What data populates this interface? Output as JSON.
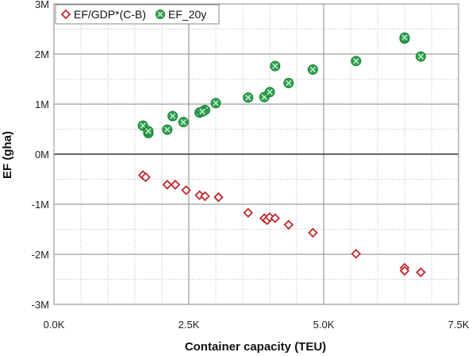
{
  "chart_data": {
    "type": "scatter",
    "title": "",
    "xlabel": "Container capacity (TEU)",
    "ylabel": "EF (gha)",
    "xlim": [
      0,
      7500
    ],
    "ylim": [
      -3000000,
      3000000
    ],
    "x_ticks": [
      {
        "value": 0,
        "label": "0.0K"
      },
      {
        "value": 2500,
        "label": "2.5K"
      },
      {
        "value": 5000,
        "label": "5.0K"
      },
      {
        "value": 7500,
        "label": "7.5K"
      }
    ],
    "y_ticks": [
      {
        "value": 3000000,
        "label": "3M"
      },
      {
        "value": 2000000,
        "label": "2M"
      },
      {
        "value": 1000000,
        "label": "1M"
      },
      {
        "value": 0,
        "label": "0M"
      },
      {
        "value": -1000000,
        "label": "-1M"
      },
      {
        "value": -2000000,
        "label": "-2M"
      },
      {
        "value": -3000000,
        "label": "-3M"
      }
    ],
    "grid": true,
    "legend": "top-left",
    "series": [
      {
        "name": "EF/GDP*(C-B)",
        "marker": "diamond",
        "color": "#c0282d",
        "points": [
          [
            1650,
            -420000
          ],
          [
            1700,
            -460000
          ],
          [
            2100,
            -610000
          ],
          [
            2250,
            -610000
          ],
          [
            2450,
            -720000
          ],
          [
            2700,
            -820000
          ],
          [
            2800,
            -840000
          ],
          [
            3050,
            -860000
          ],
          [
            3600,
            -1170000
          ],
          [
            3900,
            -1280000
          ],
          [
            3950,
            -1320000
          ],
          [
            4000,
            -1260000
          ],
          [
            4100,
            -1280000
          ],
          [
            4350,
            -1410000
          ],
          [
            4800,
            -1570000
          ],
          [
            5600,
            -1990000
          ],
          [
            6500,
            -2270000
          ],
          [
            6500,
            -2330000
          ],
          [
            6800,
            -2360000
          ]
        ]
      },
      {
        "name": "EF_20y",
        "marker": "circle-x",
        "color": "#1e9e4a",
        "points": [
          [
            1650,
            570000
          ],
          [
            1750,
            420000
          ],
          [
            1750,
            460000
          ],
          [
            2100,
            490000
          ],
          [
            2200,
            760000
          ],
          [
            2400,
            640000
          ],
          [
            2700,
            830000
          ],
          [
            2800,
            880000
          ],
          [
            2750,
            850000
          ],
          [
            3000,
            1020000
          ],
          [
            3600,
            1130000
          ],
          [
            3900,
            1140000
          ],
          [
            4000,
            1240000
          ],
          [
            4100,
            1760000
          ],
          [
            4350,
            1420000
          ],
          [
            4800,
            1690000
          ],
          [
            5600,
            1860000
          ],
          [
            6500,
            2310000
          ],
          [
            6500,
            2330000
          ],
          [
            6800,
            1950000
          ]
        ]
      }
    ]
  }
}
